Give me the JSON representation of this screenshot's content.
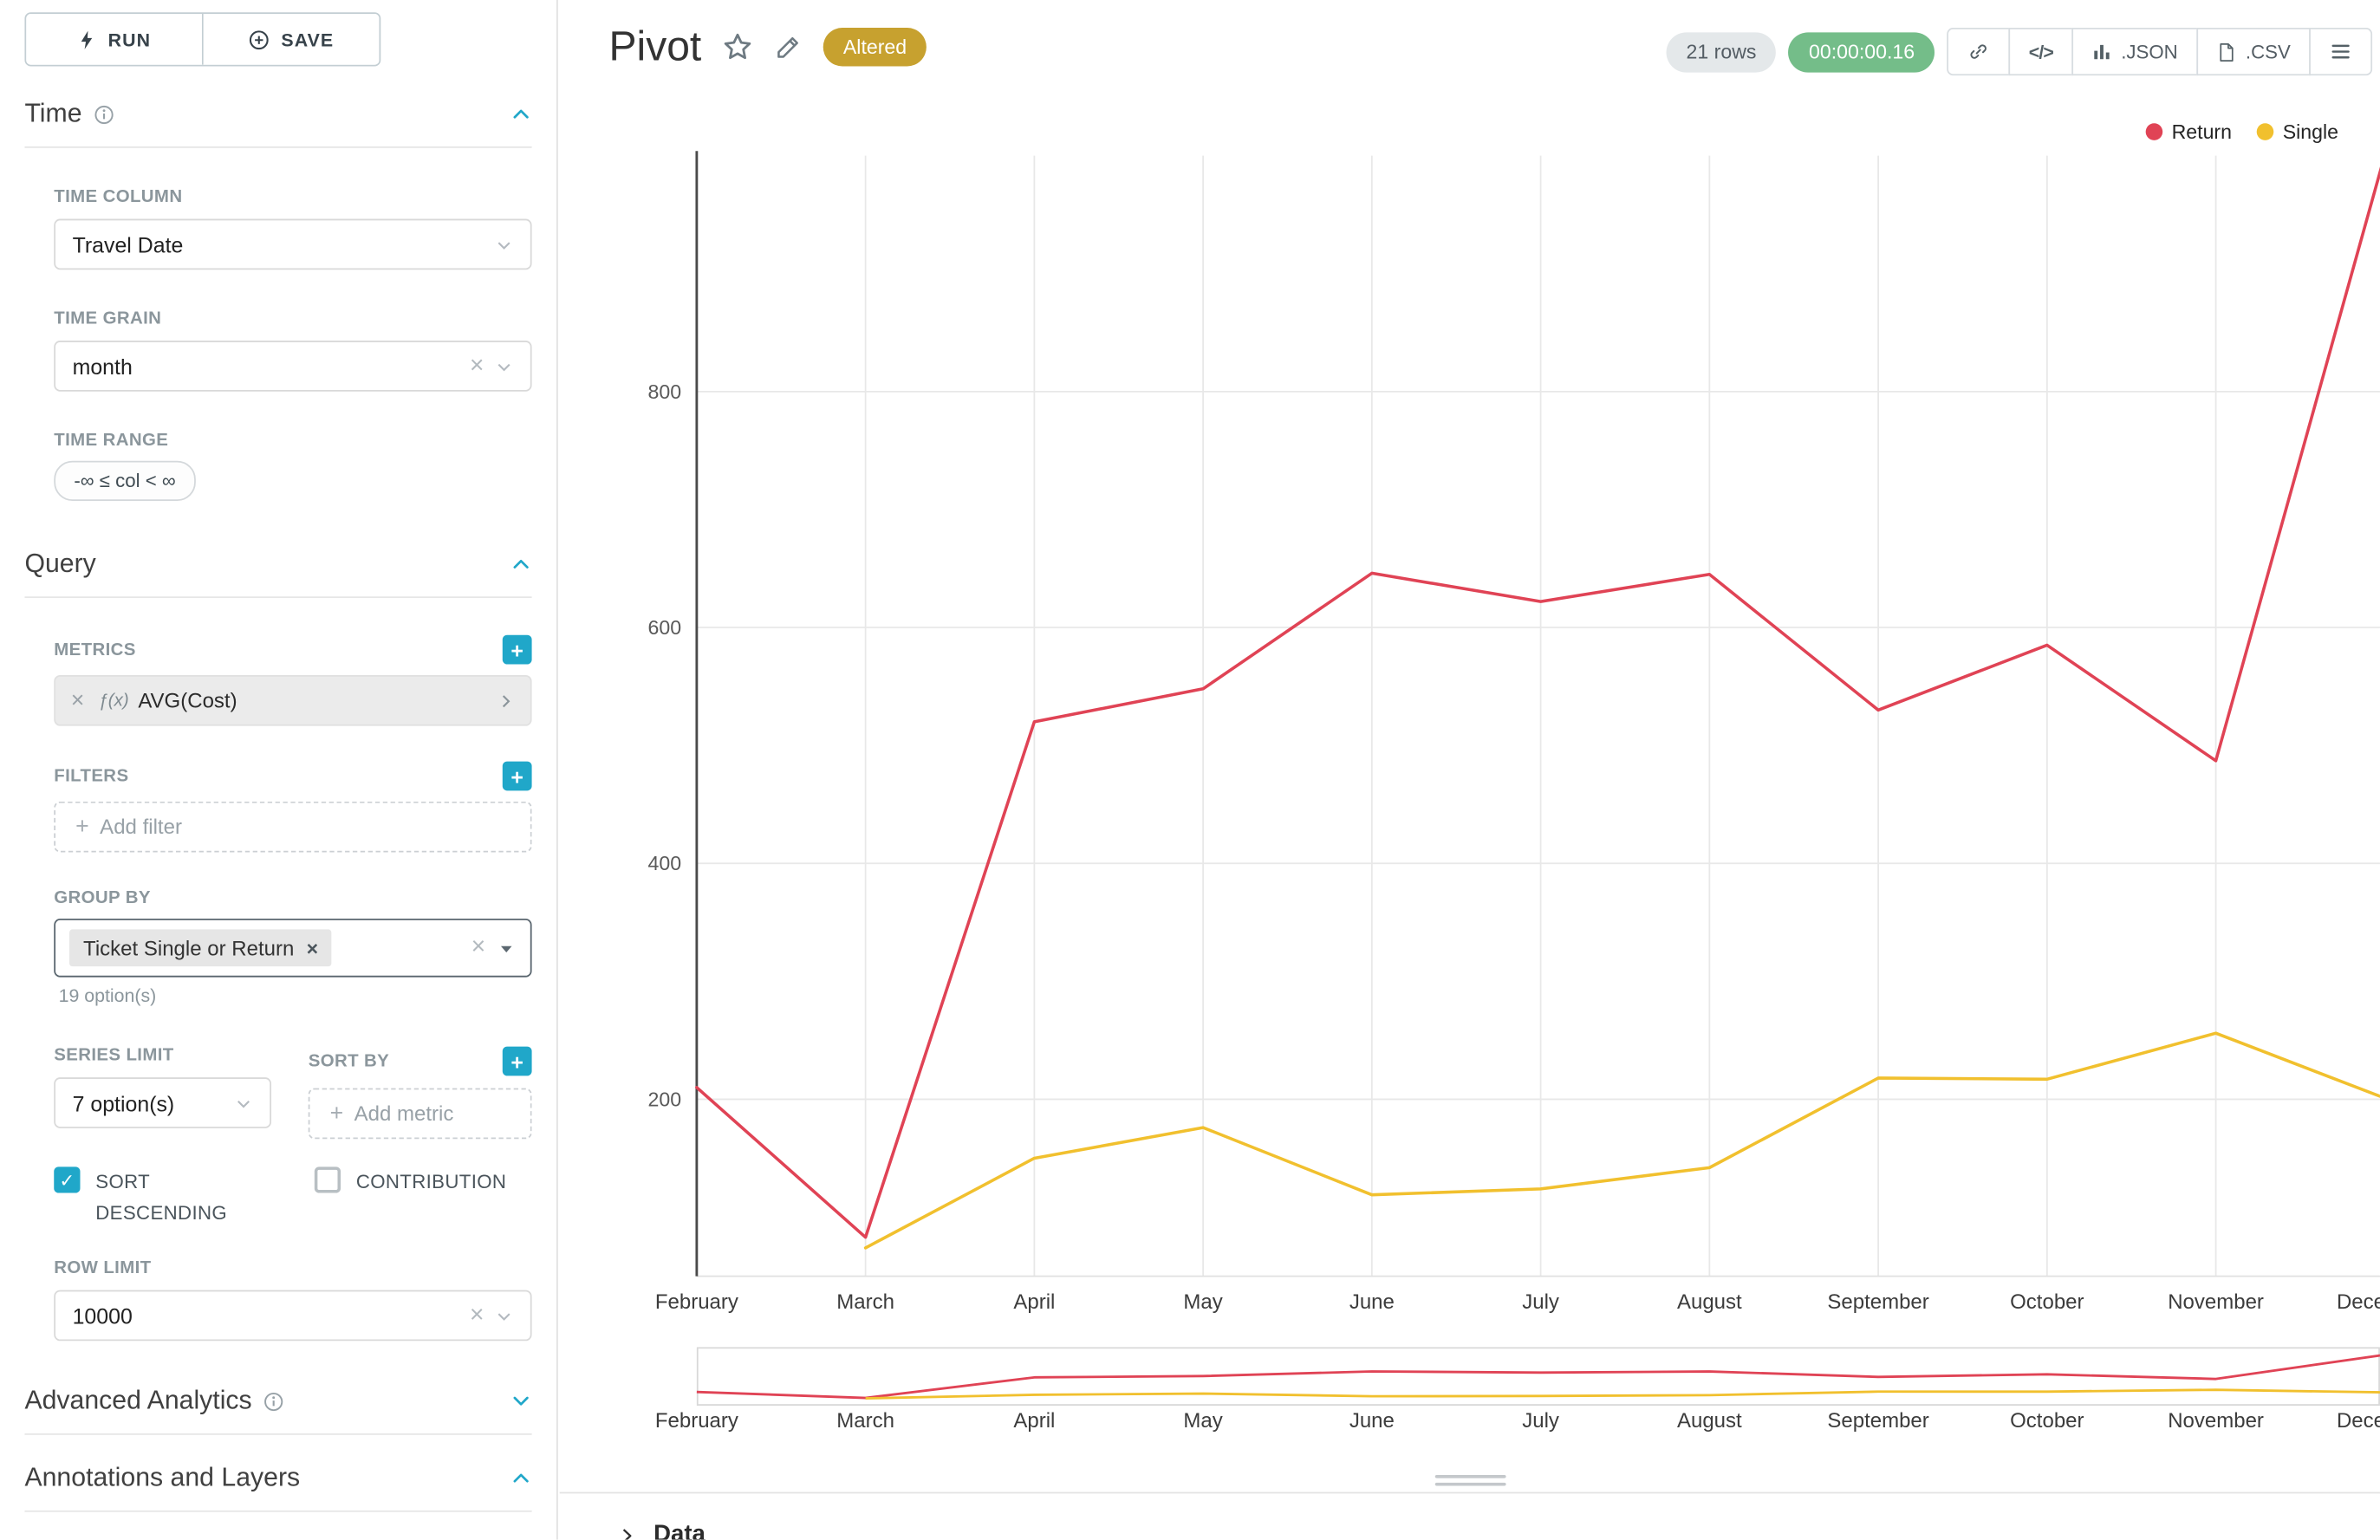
{
  "sidebar": {
    "run_button": "RUN",
    "save_button": "SAVE",
    "time_section": {
      "title": "Time",
      "time_column": {
        "label": "TIME COLUMN",
        "value": "Travel Date"
      },
      "time_grain": {
        "label": "TIME GRAIN",
        "value": "month"
      },
      "time_range": {
        "label": "TIME RANGE",
        "value": "-∞ ≤ col < ∞"
      }
    },
    "query_section": {
      "title": "Query",
      "metrics": {
        "label": "METRICS",
        "fx_icon": "ƒ(x)",
        "value": "AVG(Cost)"
      },
      "filters": {
        "label": "FILTERS",
        "placeholder": "Add filter"
      },
      "group_by": {
        "label": "GROUP BY",
        "chip": "Ticket Single or Return",
        "hint": "19 option(s)"
      },
      "series_limit": {
        "label": "SERIES LIMIT",
        "value": "7 option(s)"
      },
      "sort_by": {
        "label": "SORT BY",
        "placeholder": "Add metric"
      },
      "sort_descending": {
        "label": "SORT DESCENDING",
        "checked": true
      },
      "contribution": {
        "label": "CONTRIBUTION",
        "checked": false
      },
      "row_limit": {
        "label": "ROW LIMIT",
        "value": "10000"
      }
    },
    "advanced_section": {
      "title": "Advanced Analytics"
    },
    "annotations_section": {
      "title": "Annotations and Layers"
    }
  },
  "header": {
    "title": "Pivot",
    "altered_badge": "Altered",
    "rows_badge": "21 rows",
    "timer_badge": "00:00:00.16",
    "json_button": ".JSON",
    "csv_button": ".CSV"
  },
  "icons": {
    "plus": "+",
    "check": "✓",
    "code": "</>"
  },
  "footer": {
    "data_label": "Data"
  },
  "colors": {
    "accent": "#20a7c9",
    "altered_badge": "#c7a12f",
    "timer_badge": "#74bd89",
    "series_return": "#e04355",
    "series_single": "#f1c02e"
  },
  "chart_data": {
    "type": "line",
    "title": "Pivot",
    "categories": [
      "February",
      "March",
      "April",
      "May",
      "June",
      "July",
      "August",
      "September",
      "October",
      "November",
      "December"
    ],
    "series": [
      {
        "name": "Return",
        "color": "#e04355",
        "values": [
          210,
          83,
          520,
          548,
          646,
          622,
          645,
          530,
          585,
          487,
          1000
        ]
      },
      {
        "name": "Single",
        "color": "#f1c02e",
        "values": [
          null,
          74,
          150,
          176,
          119,
          124,
          142,
          218,
          217,
          256,
          201
        ]
      }
    ],
    "yticks": [
      200,
      400,
      600,
      800
    ],
    "ylim": [
      50,
      1000
    ],
    "xlabel": "",
    "ylabel": "",
    "grid": true,
    "legend_position": "top-right"
  }
}
